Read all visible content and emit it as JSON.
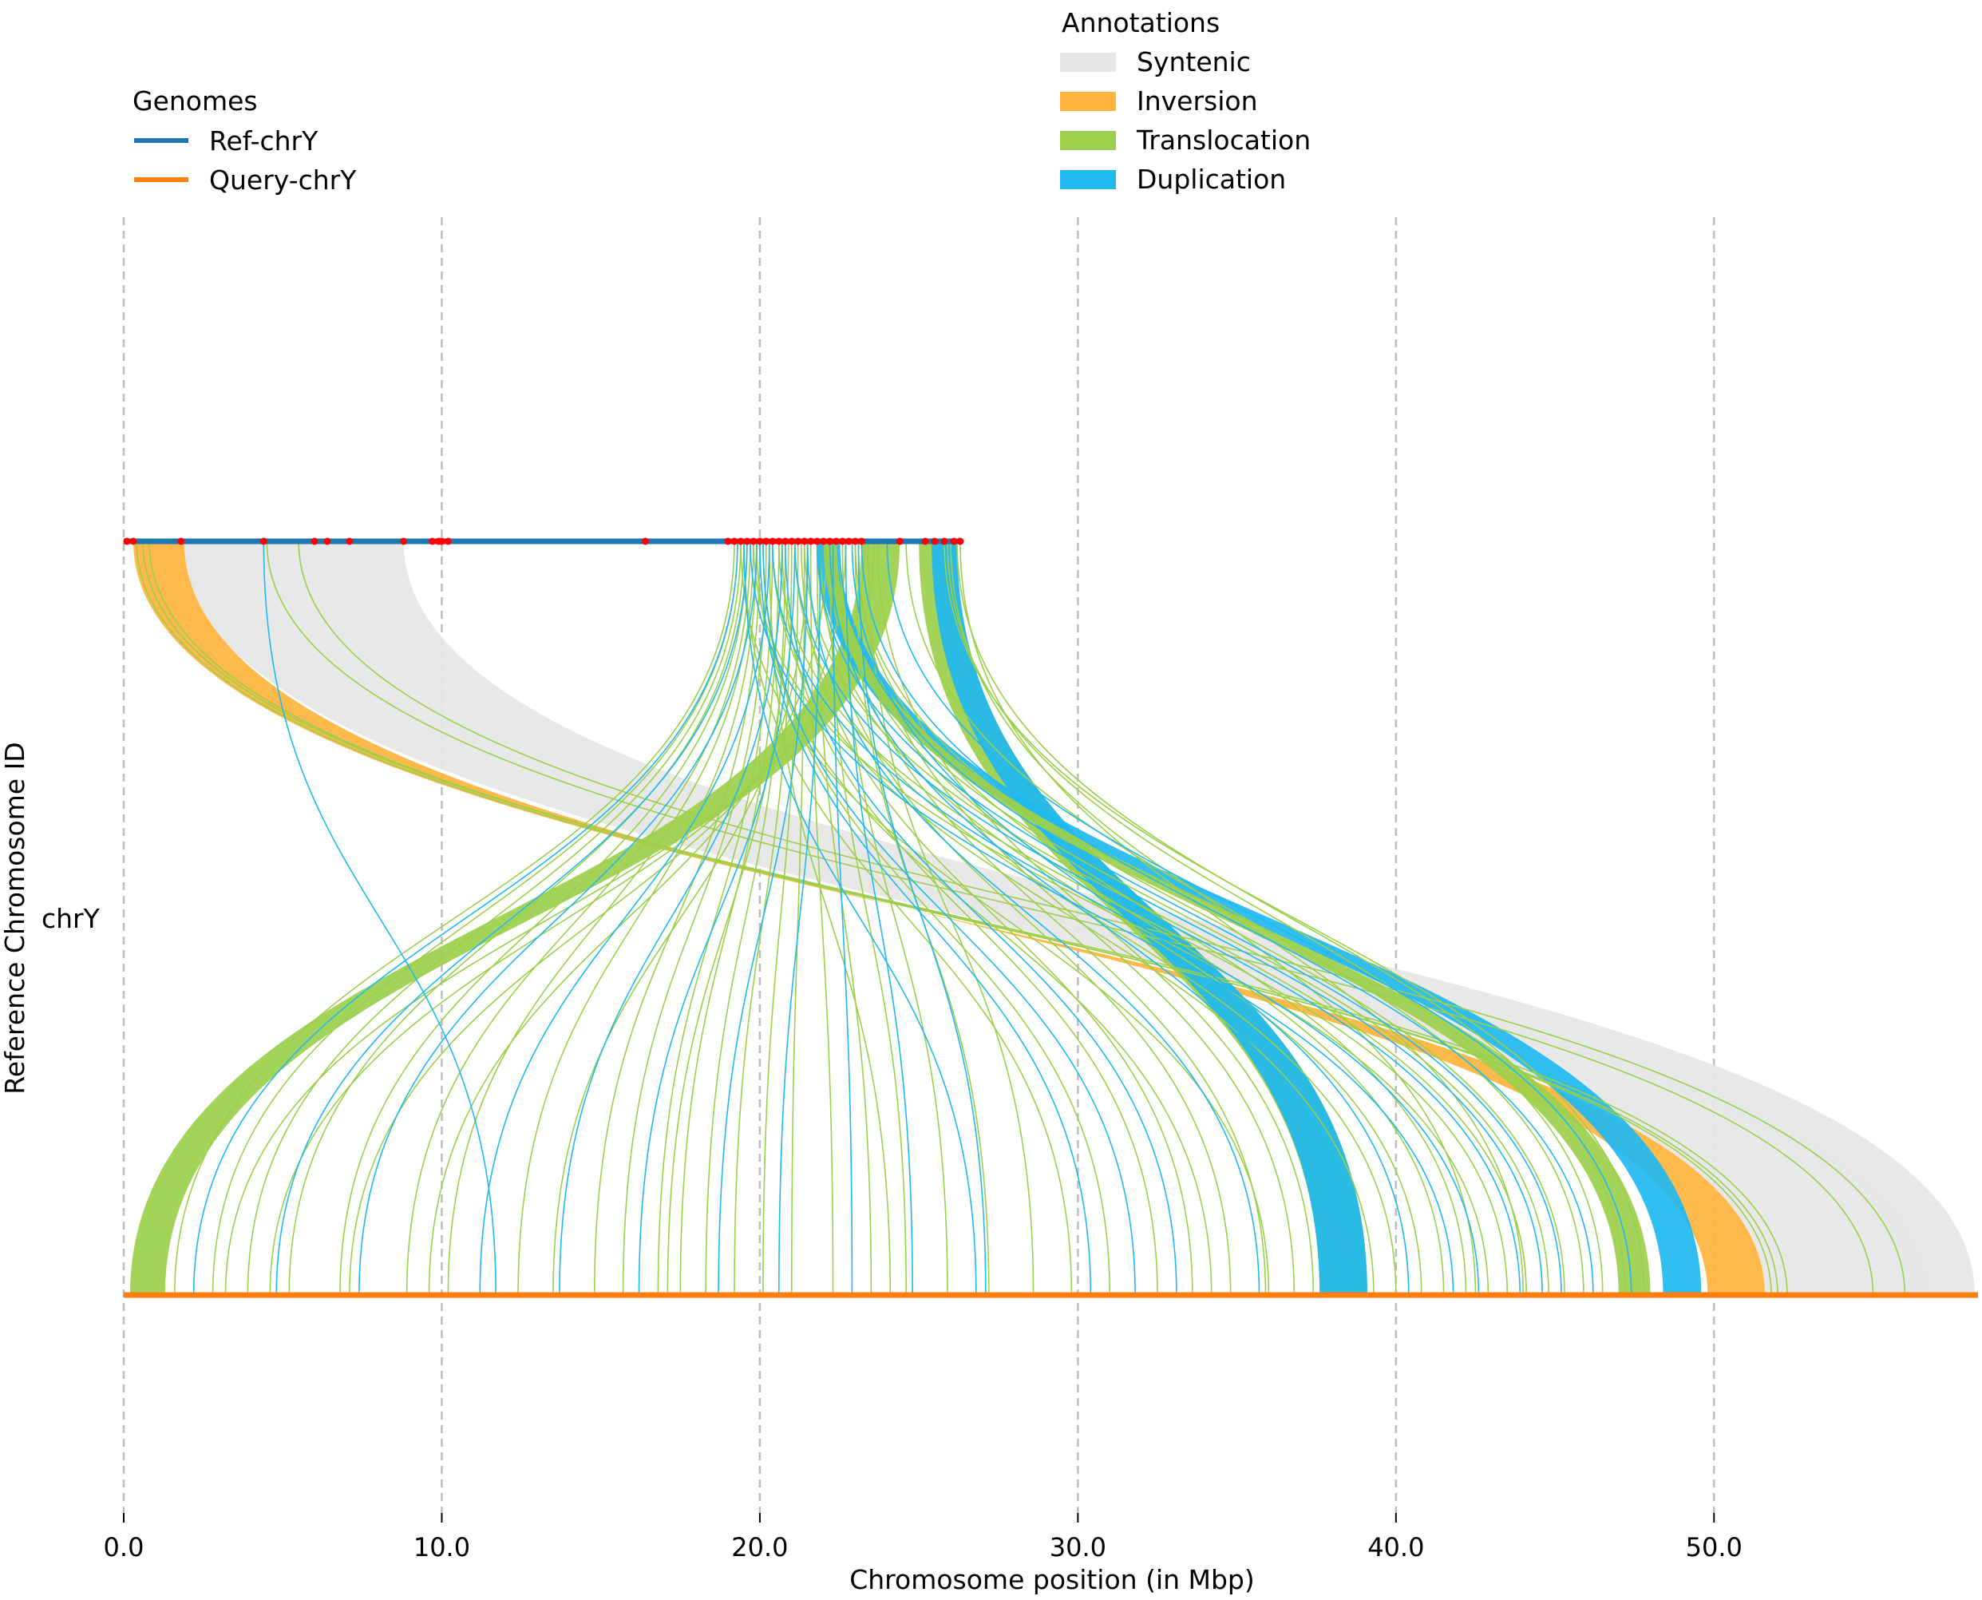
{
  "chart_data": {
    "type": "synteny-ribbon",
    "xlabel": "Chromosome position (in Mbp)",
    "ylabel": "Reference Chromosome ID",
    "xlim": [
      0,
      58.3
    ],
    "xticks": [
      0,
      10,
      20,
      30,
      40,
      50
    ],
    "xtick_labels": [
      "0.0",
      "10.0",
      "20.0",
      "30.0",
      "40.0",
      "50.0"
    ],
    "grid": "vertical dashed at ticks",
    "row_label": "chrY",
    "genomes": {
      "title": "Genomes",
      "items": [
        {
          "name": "Ref-chrY",
          "color": "#1f77b4",
          "length_mbp": 26.3
        },
        {
          "name": "Query-chrY",
          "color": "#ff7f0e",
          "length_mbp": 58.3
        }
      ]
    },
    "annotations": {
      "title": "Annotations",
      "items": [
        {
          "name": "Syntenic",
          "color": "#e6e6e6"
        },
        {
          "name": "Inversion",
          "color": "#ffb43c"
        },
        {
          "name": "Translocation",
          "color": "#9ccf4b"
        },
        {
          "name": "Duplication",
          "color": "#20b9f0"
        }
      ]
    },
    "ribbons": [
      {
        "type": "Syntenic",
        "ref": [
          1.9,
          8.8
        ],
        "query": [
          51.5,
          58.2
        ]
      },
      {
        "type": "Syntenic",
        "ref": [
          1.7,
          2.0
        ],
        "query": [
          55.8,
          56.8
        ]
      },
      {
        "type": "Inversion",
        "ref": [
          0.3,
          1.9
        ],
        "query": [
          51.6,
          49.8
        ]
      },
      {
        "type": "Translocation",
        "ref": [
          23.2,
          24.4
        ],
        "query": [
          0.2,
          1.3
        ]
      },
      {
        "type": "Translocation",
        "ref": [
          25.0,
          26.2
        ],
        "query": [
          37.6,
          39.1
        ]
      },
      {
        "type": "Duplication",
        "ref": [
          25.4,
          26.2
        ],
        "query": [
          37.6,
          39.1
        ]
      },
      {
        "type": "Duplication",
        "ref": [
          21.8,
          22.5
        ],
        "query": [
          48.4,
          49.6
        ]
      },
      {
        "type": "Translocation",
        "ref": [
          22.0,
          22.4
        ],
        "query": [
          47.0,
          48.0
        ]
      }
    ],
    "thin_links": {
      "translocation": [
        [
          19.2,
          1.6
        ],
        [
          19.3,
          2.8
        ],
        [
          19.4,
          3.9
        ],
        [
          19.5,
          5.2
        ],
        [
          19.6,
          6.8
        ],
        [
          19.7,
          8.9
        ],
        [
          19.8,
          10.2
        ],
        [
          19.9,
          12.4
        ],
        [
          20.0,
          14.8
        ],
        [
          20.2,
          15.7
        ],
        [
          20.4,
          16.8
        ],
        [
          20.6,
          17.5
        ],
        [
          20.8,
          18.3
        ],
        [
          21.0,
          19.2
        ],
        [
          21.2,
          20.1
        ],
        [
          21.4,
          21.0
        ],
        [
          21.6,
          22.3
        ],
        [
          21.8,
          23.5
        ],
        [
          22.2,
          24.6
        ],
        [
          22.6,
          25.9
        ],
        [
          23.0,
          27.2
        ],
        [
          23.4,
          28.6
        ],
        [
          19.5,
          29.8
        ],
        [
          20.1,
          31.0
        ],
        [
          20.7,
          32.5
        ],
        [
          21.3,
          33.6
        ],
        [
          21.9,
          34.8
        ],
        [
          22.5,
          35.9
        ],
        [
          23.1,
          36.8
        ],
        [
          23.7,
          37.4
        ],
        [
          20.4,
          39.3
        ],
        [
          21.1,
          40.0
        ],
        [
          21.8,
          40.8
        ],
        [
          22.4,
          41.5
        ],
        [
          23.0,
          42.2
        ],
        [
          19.8,
          42.9
        ],
        [
          20.6,
          43.5
        ],
        [
          21.4,
          44.1
        ],
        [
          22.2,
          44.8
        ],
        [
          23.0,
          45.3
        ],
        [
          24.6,
          45.9
        ],
        [
          25.9,
          46.5
        ],
        [
          26.2,
          47.2
        ],
        [
          4.5,
          55.0
        ],
        [
          5.5,
          56.0
        ],
        [
          0.4,
          52.0
        ],
        [
          0.6,
          52.3
        ],
        [
          0.8,
          51.8
        ],
        [
          26.3,
          42.5
        ],
        [
          26.0,
          44.0
        ],
        [
          25.8,
          47.8
        ],
        [
          19.4,
          36.0
        ],
        [
          19.9,
          34.2
        ],
        [
          20.3,
          24.1
        ],
        [
          20.9,
          17.1
        ],
        [
          21.5,
          13.5
        ],
        [
          22.1,
          9.6
        ],
        [
          22.7,
          7.1
        ],
        [
          23.3,
          4.6
        ],
        [
          23.6,
          3.2
        ]
      ],
      "duplication": [
        [
          19.3,
          2.2
        ],
        [
          19.6,
          4.8
        ],
        [
          19.9,
          7.4
        ],
        [
          20.3,
          11.2
        ],
        [
          20.7,
          13.7
        ],
        [
          21.1,
          16.2
        ],
        [
          21.5,
          18.7
        ],
        [
          21.9,
          20.6
        ],
        [
          22.3,
          22.9
        ],
        [
          22.7,
          24.8
        ],
        [
          23.1,
          27.1
        ],
        [
          20.1,
          31.8
        ],
        [
          20.8,
          33.1
        ],
        [
          21.5,
          35.7
        ],
        [
          22.2,
          38.8
        ],
        [
          22.9,
          40.4
        ],
        [
          19.7,
          41.8
        ],
        [
          20.4,
          42.6
        ],
        [
          21.1,
          43.9
        ],
        [
          21.8,
          44.6
        ],
        [
          22.5,
          45.2
        ],
        [
          23.2,
          46.2
        ],
        [
          24.0,
          47.4
        ],
        [
          4.4,
          11.7
        ],
        [
          19.5,
          26.8
        ],
        [
          20.0,
          30.4
        ]
      ]
    },
    "ref_breakpoints_mbp": [
      0.1,
      0.3,
      1.8,
      4.4,
      6.0,
      6.4,
      7.1,
      8.8,
      9.7,
      9.9,
      10.0,
      10.2,
      16.4,
      19.0,
      19.2,
      19.4,
      19.6,
      19.8,
      20.0,
      20.2,
      20.4,
      20.6,
      20.8,
      21.0,
      21.2,
      21.4,
      21.6,
      21.8,
      22.0,
      22.2,
      22.4,
      22.6,
      22.8,
      23.0,
      23.2,
      24.4,
      25.2,
      25.5,
      25.8,
      26.1,
      26.3
    ]
  }
}
